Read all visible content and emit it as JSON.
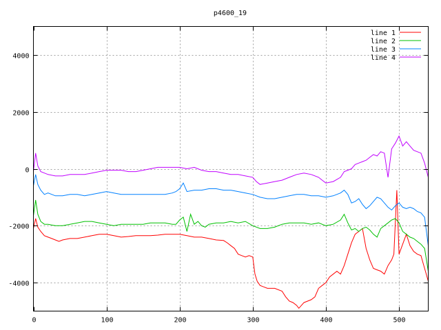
{
  "chart_data": {
    "type": "line",
    "title": "p4600_19",
    "xlabel": "",
    "ylabel": "",
    "xlim": [
      0,
      540
    ],
    "ylim": [
      -5000,
      5000
    ],
    "x_ticks": [
      0,
      100,
      200,
      300,
      400,
      500
    ],
    "y_ticks": [
      -4000,
      -2000,
      0,
      2000,
      4000
    ],
    "grid": true,
    "legend_position": "top-right",
    "series": [
      {
        "name": "line 1",
        "color": "#ff0000",
        "points": [
          [
            0,
            -2100
          ],
          [
            3,
            -1750
          ],
          [
            6,
            -2050
          ],
          [
            10,
            -2200
          ],
          [
            15,
            -2350
          ],
          [
            20,
            -2400
          ],
          [
            25,
            -2450
          ],
          [
            30,
            -2500
          ],
          [
            35,
            -2550
          ],
          [
            40,
            -2500
          ],
          [
            50,
            -2450
          ],
          [
            60,
            -2450
          ],
          [
            70,
            -2400
          ],
          [
            80,
            -2350
          ],
          [
            90,
            -2300
          ],
          [
            100,
            -2300
          ],
          [
            110,
            -2350
          ],
          [
            120,
            -2400
          ],
          [
            130,
            -2380
          ],
          [
            140,
            -2350
          ],
          [
            150,
            -2350
          ],
          [
            160,
            -2350
          ],
          [
            170,
            -2330
          ],
          [
            180,
            -2300
          ],
          [
            190,
            -2300
          ],
          [
            200,
            -2300
          ],
          [
            210,
            -2350
          ],
          [
            220,
            -2400
          ],
          [
            230,
            -2400
          ],
          [
            240,
            -2450
          ],
          [
            250,
            -2500
          ],
          [
            260,
            -2520
          ],
          [
            265,
            -2600
          ],
          [
            270,
            -2700
          ],
          [
            275,
            -2800
          ],
          [
            280,
            -3000
          ],
          [
            285,
            -3050
          ],
          [
            290,
            -3100
          ],
          [
            295,
            -3050
          ],
          [
            300,
            -3100
          ],
          [
            303,
            -3700
          ],
          [
            306,
            -3950
          ],
          [
            310,
            -4100
          ],
          [
            315,
            -4150
          ],
          [
            320,
            -4200
          ],
          [
            330,
            -4200
          ],
          [
            340,
            -4300
          ],
          [
            345,
            -4500
          ],
          [
            350,
            -4650
          ],
          [
            355,
            -4700
          ],
          [
            360,
            -4800
          ],
          [
            363,
            -4900
          ],
          [
            370,
            -4700
          ],
          [
            375,
            -4650
          ],
          [
            380,
            -4600
          ],
          [
            385,
            -4500
          ],
          [
            390,
            -4200
          ],
          [
            395,
            -4100
          ],
          [
            400,
            -4000
          ],
          [
            405,
            -3800
          ],
          [
            410,
            -3700
          ],
          [
            415,
            -3600
          ],
          [
            420,
            -3700
          ],
          [
            425,
            -3400
          ],
          [
            430,
            -3000
          ],
          [
            435,
            -2600
          ],
          [
            440,
            -2300
          ],
          [
            445,
            -2200
          ],
          [
            450,
            -2100
          ],
          [
            455,
            -2800
          ],
          [
            460,
            -3200
          ],
          [
            465,
            -3500
          ],
          [
            470,
            -3550
          ],
          [
            475,
            -3600
          ],
          [
            480,
            -3700
          ],
          [
            485,
            -3400
          ],
          [
            490,
            -3200
          ],
          [
            493,
            -3000
          ],
          [
            497,
            -750
          ],
          [
            500,
            -3000
          ],
          [
            505,
            -2650
          ],
          [
            510,
            -2300
          ],
          [
            515,
            -2700
          ],
          [
            520,
            -2900
          ],
          [
            525,
            -3000
          ],
          [
            530,
            -3050
          ],
          [
            535,
            -3500
          ],
          [
            540,
            -3950
          ]
        ]
      },
      {
        "name": "line 2",
        "color": "#00c000",
        "points": [
          [
            0,
            -1650
          ],
          [
            3,
            -1100
          ],
          [
            6,
            -1600
          ],
          [
            10,
            -1850
          ],
          [
            15,
            -1950
          ],
          [
            20,
            -1950
          ],
          [
            30,
            -2000
          ],
          [
            40,
            -2000
          ],
          [
            50,
            -1950
          ],
          [
            60,
            -1900
          ],
          [
            70,
            -1850
          ],
          [
            80,
            -1850
          ],
          [
            90,
            -1900
          ],
          [
            100,
            -1950
          ],
          [
            110,
            -2000
          ],
          [
            120,
            -1950
          ],
          [
            130,
            -1950
          ],
          [
            140,
            -1950
          ],
          [
            150,
            -1950
          ],
          [
            160,
            -1900
          ],
          [
            170,
            -1900
          ],
          [
            180,
            -1900
          ],
          [
            190,
            -1950
          ],
          [
            195,
            -1950
          ],
          [
            200,
            -1800
          ],
          [
            205,
            -1700
          ],
          [
            210,
            -2200
          ],
          [
            215,
            -1600
          ],
          [
            220,
            -1950
          ],
          [
            225,
            -1850
          ],
          [
            230,
            -2000
          ],
          [
            235,
            -2050
          ],
          [
            240,
            -1950
          ],
          [
            250,
            -1900
          ],
          [
            260,
            -1900
          ],
          [
            270,
            -1850
          ],
          [
            280,
            -1900
          ],
          [
            290,
            -1850
          ],
          [
            300,
            -2000
          ],
          [
            310,
            -2100
          ],
          [
            320,
            -2100
          ],
          [
            330,
            -2050
          ],
          [
            340,
            -1950
          ],
          [
            350,
            -1900
          ],
          [
            360,
            -1900
          ],
          [
            370,
            -1900
          ],
          [
            380,
            -1950
          ],
          [
            390,
            -1900
          ],
          [
            400,
            -2000
          ],
          [
            410,
            -1950
          ],
          [
            420,
            -1800
          ],
          [
            425,
            -1600
          ],
          [
            430,
            -1900
          ],
          [
            435,
            -2150
          ],
          [
            440,
            -2100
          ],
          [
            445,
            -2200
          ],
          [
            450,
            -2100
          ],
          [
            455,
            -2050
          ],
          [
            460,
            -2150
          ],
          [
            465,
            -2300
          ],
          [
            470,
            -2400
          ],
          [
            475,
            -2100
          ],
          [
            480,
            -2000
          ],
          [
            485,
            -1900
          ],
          [
            490,
            -1800
          ],
          [
            495,
            -1750
          ],
          [
            500,
            -1900
          ],
          [
            505,
            -2200
          ],
          [
            510,
            -2300
          ],
          [
            515,
            -2400
          ],
          [
            520,
            -2450
          ],
          [
            525,
            -2550
          ],
          [
            530,
            -2650
          ],
          [
            535,
            -2800
          ],
          [
            540,
            -3600
          ]
        ]
      },
      {
        "name": "line 3",
        "color": "#0080ff",
        "points": [
          [
            0,
            -600
          ],
          [
            3,
            -200
          ],
          [
            6,
            -550
          ],
          [
            10,
            -750
          ],
          [
            15,
            -900
          ],
          [
            20,
            -850
          ],
          [
            30,
            -950
          ],
          [
            40,
            -950
          ],
          [
            50,
            -900
          ],
          [
            60,
            -900
          ],
          [
            70,
            -950
          ],
          [
            80,
            -900
          ],
          [
            90,
            -850
          ],
          [
            100,
            -800
          ],
          [
            110,
            -850
          ],
          [
            120,
            -900
          ],
          [
            130,
            -900
          ],
          [
            140,
            -900
          ],
          [
            150,
            -900
          ],
          [
            160,
            -900
          ],
          [
            170,
            -900
          ],
          [
            180,
            -900
          ],
          [
            190,
            -850
          ],
          [
            195,
            -800
          ],
          [
            200,
            -700
          ],
          [
            205,
            -500
          ],
          [
            210,
            -800
          ],
          [
            220,
            -750
          ],
          [
            230,
            -750
          ],
          [
            240,
            -700
          ],
          [
            250,
            -700
          ],
          [
            260,
            -750
          ],
          [
            270,
            -750
          ],
          [
            280,
            -800
          ],
          [
            290,
            -850
          ],
          [
            300,
            -900
          ],
          [
            310,
            -1000
          ],
          [
            320,
            -1050
          ],
          [
            330,
            -1050
          ],
          [
            340,
            -1000
          ],
          [
            350,
            -950
          ],
          [
            360,
            -900
          ],
          [
            370,
            -900
          ],
          [
            380,
            -950
          ],
          [
            390,
            -950
          ],
          [
            400,
            -1000
          ],
          [
            410,
            -950
          ],
          [
            420,
            -850
          ],
          [
            425,
            -750
          ],
          [
            430,
            -900
          ],
          [
            435,
            -1200
          ],
          [
            440,
            -1150
          ],
          [
            445,
            -1050
          ],
          [
            450,
            -1250
          ],
          [
            455,
            -1400
          ],
          [
            460,
            -1300
          ],
          [
            465,
            -1150
          ],
          [
            470,
            -1000
          ],
          [
            475,
            -1050
          ],
          [
            480,
            -1200
          ],
          [
            485,
            -1350
          ],
          [
            490,
            -1450
          ],
          [
            495,
            -1300
          ],
          [
            500,
            -1200
          ],
          [
            505,
            -1350
          ],
          [
            510,
            -1400
          ],
          [
            515,
            -1350
          ],
          [
            520,
            -1400
          ],
          [
            525,
            -1500
          ],
          [
            530,
            -1550
          ],
          [
            535,
            -1700
          ],
          [
            540,
            -2700
          ]
        ]
      },
      {
        "name": "line 4",
        "color": "#c000ff",
        "points": [
          [
            0,
            -100
          ],
          [
            3,
            550
          ],
          [
            6,
            100
          ],
          [
            10,
            -100
          ],
          [
            15,
            -150
          ],
          [
            20,
            -200
          ],
          [
            30,
            -250
          ],
          [
            40,
            -250
          ],
          [
            50,
            -200
          ],
          [
            60,
            -200
          ],
          [
            70,
            -200
          ],
          [
            80,
            -150
          ],
          [
            90,
            -100
          ],
          [
            100,
            -50
          ],
          [
            110,
            -50
          ],
          [
            120,
            -50
          ],
          [
            130,
            -100
          ],
          [
            140,
            -100
          ],
          [
            150,
            -50
          ],
          [
            160,
            0
          ],
          [
            170,
            50
          ],
          [
            180,
            50
          ],
          [
            190,
            50
          ],
          [
            200,
            50
          ],
          [
            210,
            0
          ],
          [
            220,
            50
          ],
          [
            230,
            -50
          ],
          [
            240,
            -100
          ],
          [
            250,
            -100
          ],
          [
            260,
            -150
          ],
          [
            270,
            -200
          ],
          [
            280,
            -200
          ],
          [
            290,
            -250
          ],
          [
            300,
            -300
          ],
          [
            305,
            -450
          ],
          [
            310,
            -550
          ],
          [
            320,
            -500
          ],
          [
            330,
            -450
          ],
          [
            340,
            -400
          ],
          [
            350,
            -300
          ],
          [
            360,
            -200
          ],
          [
            370,
            -150
          ],
          [
            380,
            -200
          ],
          [
            390,
            -300
          ],
          [
            395,
            -400
          ],
          [
            400,
            -500
          ],
          [
            410,
            -450
          ],
          [
            420,
            -300
          ],
          [
            425,
            -100
          ],
          [
            430,
            -50
          ],
          [
            435,
            0
          ],
          [
            440,
            150
          ],
          [
            445,
            200
          ],
          [
            450,
            250
          ],
          [
            455,
            300
          ],
          [
            460,
            400
          ],
          [
            465,
            500
          ],
          [
            470,
            450
          ],
          [
            475,
            600
          ],
          [
            480,
            550
          ],
          [
            485,
            -300
          ],
          [
            490,
            700
          ],
          [
            495,
            900
          ],
          [
            500,
            1150
          ],
          [
            505,
            800
          ],
          [
            510,
            950
          ],
          [
            515,
            800
          ],
          [
            520,
            650
          ],
          [
            525,
            600
          ],
          [
            530,
            550
          ],
          [
            535,
            200
          ],
          [
            540,
            -300
          ]
        ]
      }
    ]
  }
}
